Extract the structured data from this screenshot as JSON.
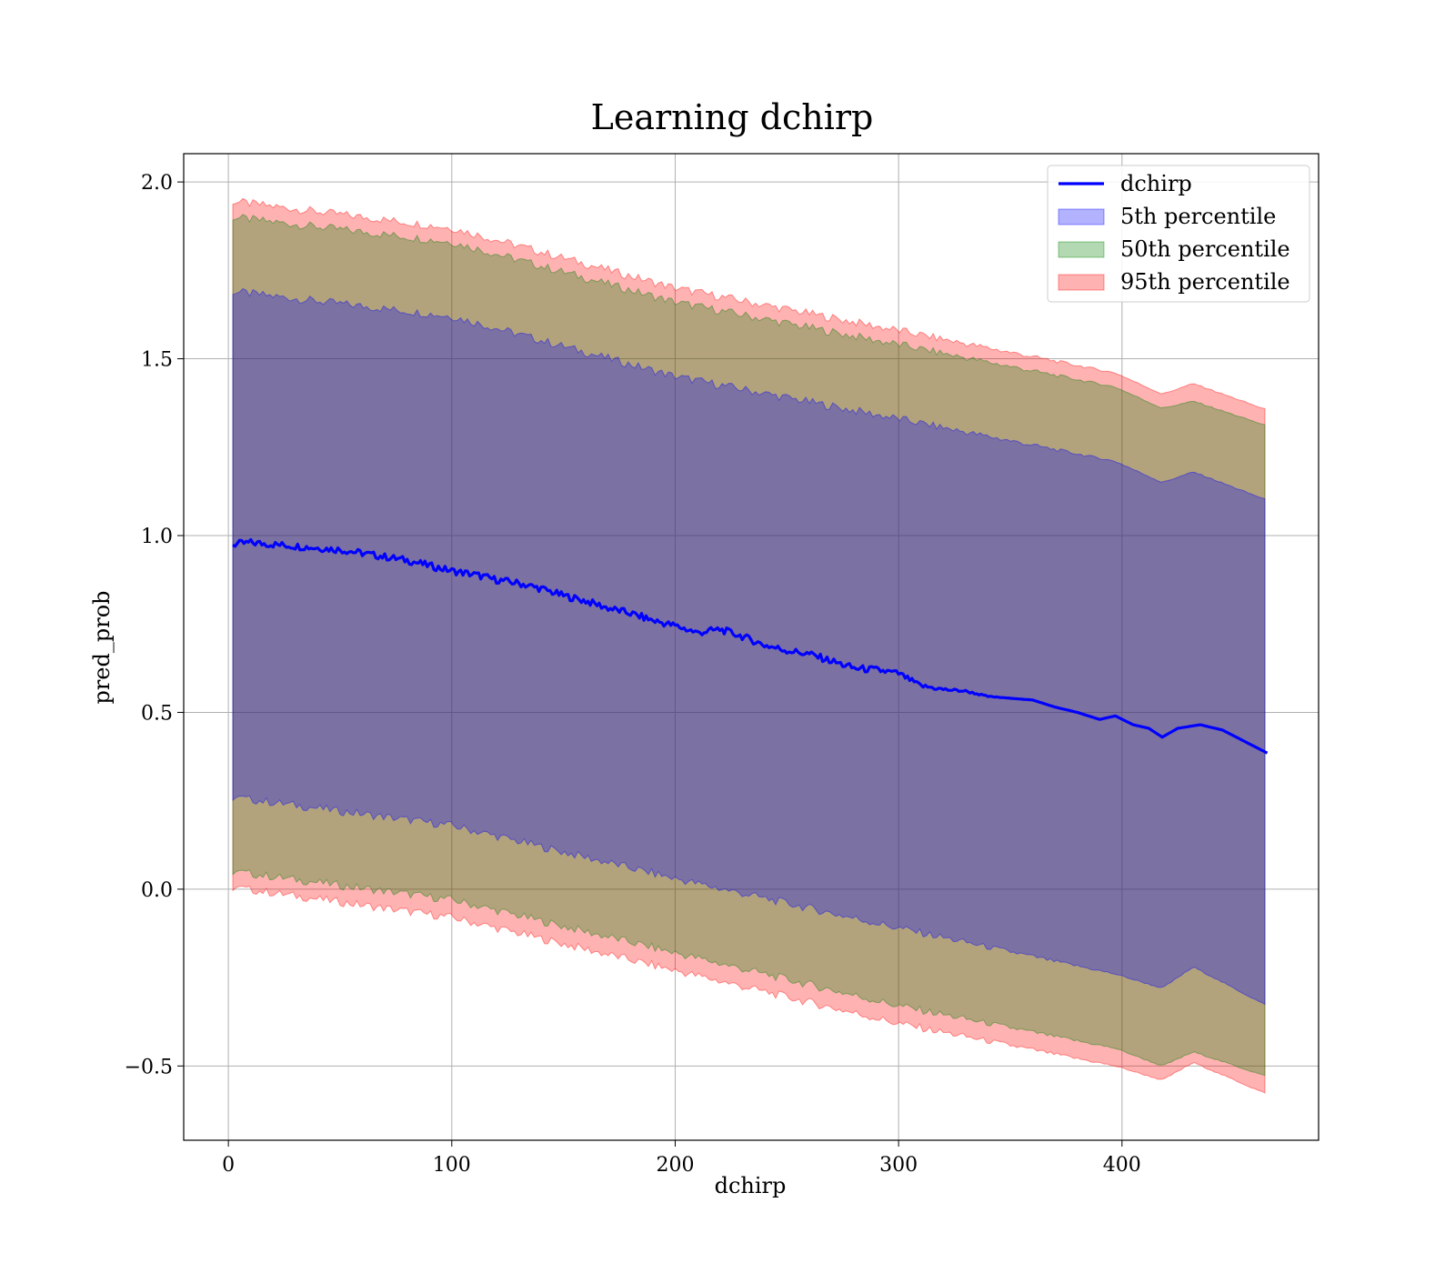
{
  "chart_data": {
    "type": "area",
    "title": "Learning dchirp",
    "xlabel": "dchirp",
    "ylabel": "pred_prob",
    "xlim": [
      -20,
      488
    ],
    "ylim": [
      -0.71,
      2.08
    ],
    "xticks": [
      0,
      100,
      200,
      300,
      400
    ],
    "xtick_labels": [
      "0",
      "100",
      "200",
      "300",
      "400"
    ],
    "yticks": [
      -0.5,
      0.0,
      0.5,
      1.0,
      1.5,
      2.0
    ],
    "ytick_labels": [
      "−0.5",
      "0.0",
      "0.5",
      "1.0",
      "1.5",
      "2.0"
    ],
    "grid": true,
    "legend_position": "top-right",
    "line": {
      "name": "dchirp",
      "color": "#0000ff",
      "x": [
        2,
        10,
        20,
        30,
        40,
        50,
        60,
        70,
        80,
        90,
        100,
        110,
        120,
        130,
        140,
        150,
        160,
        170,
        180,
        190,
        200,
        210,
        220,
        230,
        240,
        250,
        260,
        270,
        280,
        290,
        300,
        310,
        320,
        330,
        340,
        350,
        360,
        370,
        380,
        390,
        397,
        405,
        412,
        418,
        425,
        435,
        445,
        465
      ],
      "y": [
        0.975,
        0.98,
        0.975,
        0.97,
        0.965,
        0.96,
        0.95,
        0.94,
        0.93,
        0.915,
        0.9,
        0.89,
        0.875,
        0.865,
        0.85,
        0.83,
        0.815,
        0.795,
        0.78,
        0.76,
        0.745,
        0.725,
        0.735,
        0.715,
        0.69,
        0.675,
        0.665,
        0.645,
        0.625,
        0.62,
        0.61,
        0.575,
        0.565,
        0.56,
        0.545,
        0.54,
        0.535,
        0.515,
        0.5,
        0.48,
        0.49,
        0.465,
        0.455,
        0.43,
        0.455,
        0.465,
        0.45,
        0.385
      ]
    },
    "series": [
      {
        "name": "5th percentile",
        "color": "#0000ff",
        "opacity": 0.3,
        "x": [
          2,
          100,
          200,
          300,
          397,
          418,
          432,
          465
        ],
        "lower": [
          0.26,
          0.18,
          0.03,
          -0.11,
          -0.24,
          -0.28,
          -0.22,
          -0.33
        ],
        "upper": [
          1.69,
          1.62,
          1.45,
          1.33,
          1.21,
          1.15,
          1.18,
          1.1
        ]
      },
      {
        "name": "50th percentile",
        "color": "#008000",
        "opacity": 0.3,
        "x": [
          2,
          100,
          200,
          300,
          397,
          418,
          432,
          465
        ],
        "lower": [
          0.05,
          -0.03,
          -0.18,
          -0.33,
          -0.45,
          -0.5,
          -0.46,
          -0.53
        ],
        "upper": [
          1.9,
          1.83,
          1.66,
          1.54,
          1.42,
          1.36,
          1.38,
          1.31
        ]
      },
      {
        "name": "95th percentile",
        "color": "#ff0000",
        "opacity": 0.3,
        "x": [
          2,
          100,
          200,
          300,
          397,
          418,
          432,
          465
        ],
        "lower": [
          0.005,
          -0.08,
          -0.23,
          -0.38,
          -0.5,
          -0.54,
          -0.49,
          -0.58
        ],
        "upper": [
          1.945,
          1.87,
          1.7,
          1.58,
          1.46,
          1.4,
          1.43,
          1.355
        ]
      }
    ]
  }
}
